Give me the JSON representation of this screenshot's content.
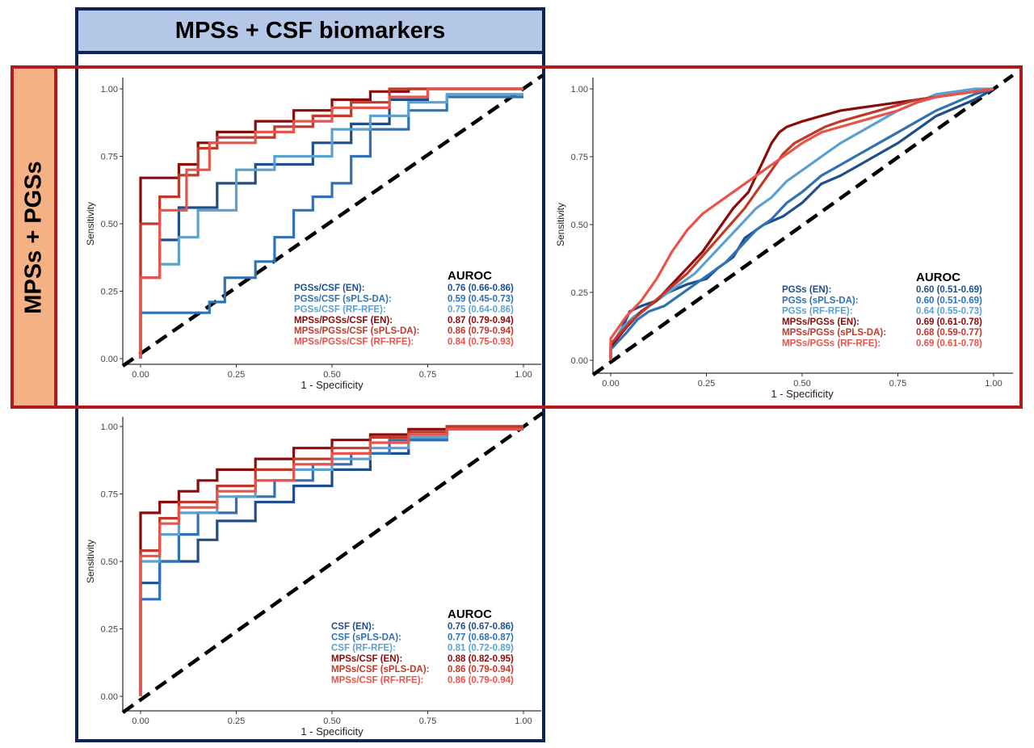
{
  "panels": {
    "column_header": "MPSs + CSF biomarkers",
    "row_header": "MPSs + PGSs"
  },
  "colors": {
    "frame_blue": "#0f2256",
    "frame_red": "#b01a1a",
    "header_blue_fill": "#b4c7e7",
    "header_orange_fill": "#f4b183"
  },
  "chart_data": [
    {
      "type": "line",
      "xlabel": "1 - Specificity",
      "ylabel": "Sensitivity",
      "xlim": [
        0,
        1
      ],
      "ylim": [
        0,
        1
      ],
      "ticks": [
        "0.00",
        "0.25",
        "0.50",
        "0.75",
        "1.00"
      ],
      "legend_title": "AUROC",
      "series": [
        {
          "name": "PGSs/CSF (EN):",
          "auroc": "0.76 (0.66-0.86)",
          "color": "#1f4e8c",
          "x": [
            0,
            0,
            0.05,
            0.05,
            0.1,
            0.1,
            0.2,
            0.2,
            0.3,
            0.3,
            0.45,
            0.45,
            0.55,
            0.55,
            0.65,
            0.65,
            0.75,
            0.75,
            1
          ],
          "y": [
            0,
            0.3,
            0.3,
            0.44,
            0.44,
            0.56,
            0.56,
            0.65,
            0.65,
            0.72,
            0.72,
            0.8,
            0.8,
            0.87,
            0.87,
            0.96,
            0.96,
            1,
            1
          ]
        },
        {
          "name": "PGSs/CSF (sPLS-DA):",
          "auroc": "0.59 (0.45-0.73)",
          "color": "#2f72b4",
          "x": [
            0,
            0,
            0.05,
            0.05,
            0.18,
            0.18,
            0.22,
            0.22,
            0.3,
            0.3,
            0.35,
            0.35,
            0.4,
            0.4,
            0.45,
            0.45,
            0.5,
            0.5,
            0.55,
            0.55,
            0.6,
            0.6,
            0.7,
            0.7,
            0.8,
            0.8,
            1
          ],
          "y": [
            0,
            0.17,
            0.17,
            0.17,
            0.17,
            0.21,
            0.21,
            0.3,
            0.3,
            0.36,
            0.36,
            0.45,
            0.45,
            0.55,
            0.55,
            0.6,
            0.6,
            0.65,
            0.65,
            0.75,
            0.75,
            0.85,
            0.85,
            0.92,
            0.92,
            0.97,
            0.97
          ]
        },
        {
          "name": "PGSs/CSF (RF-RFE):",
          "auroc": "0.75 (0.64-0.86)",
          "color": "#5ba0d0",
          "x": [
            0,
            0,
            0.05,
            0.05,
            0.1,
            0.1,
            0.15,
            0.15,
            0.25,
            0.25,
            0.35,
            0.35,
            0.5,
            0.5,
            0.6,
            0.6,
            0.7,
            0.7,
            0.8,
            0.8,
            1
          ],
          "y": [
            0,
            0.3,
            0.3,
            0.35,
            0.35,
            0.45,
            0.45,
            0.55,
            0.55,
            0.7,
            0.7,
            0.75,
            0.75,
            0.85,
            0.85,
            0.9,
            0.9,
            0.95,
            0.95,
            0.98,
            0.98
          ]
        },
        {
          "name": "MPSs/PGSs/CSF (EN):",
          "auroc": "0.87 (0.79-0.94)",
          "color": "#8b0a0a",
          "x": [
            0,
            0,
            0.1,
            0.1,
            0.15,
            0.15,
            0.2,
            0.2,
            0.3,
            0.3,
            0.4,
            0.4,
            0.5,
            0.5,
            0.6,
            0.6,
            0.7,
            0.7,
            1
          ],
          "y": [
            0,
            0.67,
            0.67,
            0.72,
            0.72,
            0.8,
            0.8,
            0.84,
            0.84,
            0.88,
            0.88,
            0.92,
            0.92,
            0.96,
            0.96,
            0.99,
            0.99,
            1,
            1
          ]
        },
        {
          "name": "MPSs/PGSs/CSF (sPLS-DA):",
          "auroc": "0.86 (0.79-0.94)",
          "color": "#c0392b",
          "x": [
            0,
            0,
            0.05,
            0.05,
            0.1,
            0.1,
            0.15,
            0.15,
            0.2,
            0.2,
            0.35,
            0.35,
            0.45,
            0.45,
            0.55,
            0.55,
            0.65,
            0.65,
            1
          ],
          "y": [
            0,
            0.5,
            0.5,
            0.6,
            0.6,
            0.68,
            0.68,
            0.78,
            0.78,
            0.82,
            0.82,
            0.86,
            0.86,
            0.9,
            0.9,
            0.95,
            0.95,
            1,
            1
          ]
        },
        {
          "name": "MPSs/PGSs/CSF (RF-RFE):",
          "auroc": "0.84 (0.75-0.93)",
          "color": "#e8534a",
          "x": [
            0,
            0,
            0.05,
            0.05,
            0.12,
            0.12,
            0.18,
            0.18,
            0.3,
            0.3,
            0.4,
            0.4,
            0.5,
            0.5,
            0.65,
            0.65,
            0.75,
            0.75,
            1
          ],
          "y": [
            0,
            0.3,
            0.3,
            0.55,
            0.55,
            0.7,
            0.7,
            0.8,
            0.8,
            0.84,
            0.84,
            0.88,
            0.88,
            0.93,
            0.93,
            0.97,
            0.97,
            1,
            1
          ]
        }
      ]
    },
    {
      "type": "line",
      "xlabel": "1 - Specificity",
      "ylabel": "Sensitivity",
      "xlim": [
        0,
        1
      ],
      "ylim": [
        0,
        1
      ],
      "ticks": [
        "0.00",
        "0.25",
        "0.50",
        "0.75",
        "1.00"
      ],
      "legend_title": "AUROC",
      "series": [
        {
          "name": "PGSs (EN):",
          "auroc": "0.60 (0.51-0.69)",
          "color": "#1f4e8c",
          "x": [
            0,
            0,
            0.03,
            0.05,
            0.08,
            0.12,
            0.15,
            0.2,
            0.25,
            0.28,
            0.32,
            0.35,
            0.4,
            0.45,
            0.5,
            0.55,
            0.6,
            0.65,
            0.7,
            0.75,
            0.8,
            0.85,
            0.9,
            0.95,
            1
          ],
          "y": [
            0,
            0.05,
            0.12,
            0.18,
            0.2,
            0.22,
            0.25,
            0.28,
            0.3,
            0.34,
            0.38,
            0.45,
            0.5,
            0.53,
            0.58,
            0.65,
            0.68,
            0.72,
            0.76,
            0.8,
            0.85,
            0.9,
            0.93,
            0.96,
            1
          ]
        },
        {
          "name": "PGSs (sPLS-DA):",
          "auroc": "0.60 (0.51-0.69)",
          "color": "#2f72b4",
          "x": [
            0,
            0,
            0.04,
            0.07,
            0.1,
            0.14,
            0.18,
            0.22,
            0.26,
            0.3,
            0.34,
            0.38,
            0.42,
            0.46,
            0.5,
            0.55,
            0.6,
            0.65,
            0.7,
            0.75,
            0.8,
            0.85,
            0.9,
            0.95,
            1
          ],
          "y": [
            0,
            0.04,
            0.1,
            0.15,
            0.18,
            0.2,
            0.24,
            0.28,
            0.32,
            0.36,
            0.42,
            0.48,
            0.52,
            0.58,
            0.62,
            0.68,
            0.72,
            0.76,
            0.8,
            0.84,
            0.88,
            0.92,
            0.95,
            0.98,
            1
          ]
        },
        {
          "name": "PGSs (RF-RFE):",
          "auroc": "0.64 (0.55-0.73)",
          "color": "#5ba0d0",
          "x": [
            0,
            0,
            0.03,
            0.06,
            0.1,
            0.14,
            0.18,
            0.22,
            0.26,
            0.3,
            0.34,
            0.38,
            0.42,
            0.46,
            0.5,
            0.55,
            0.6,
            0.65,
            0.7,
            0.75,
            0.8,
            0.85,
            0.9,
            0.95,
            1
          ],
          "y": [
            0,
            0.05,
            0.12,
            0.16,
            0.2,
            0.24,
            0.28,
            0.32,
            0.38,
            0.44,
            0.5,
            0.56,
            0.6,
            0.66,
            0.7,
            0.75,
            0.8,
            0.84,
            0.88,
            0.92,
            0.95,
            0.98,
            0.99,
            1,
            1
          ]
        },
        {
          "name": "MPSs/PGSs (EN):",
          "auroc": "0.69 (0.61-0.78)",
          "color": "#8b0a0a",
          "x": [
            0,
            0,
            0.04,
            0.08,
            0.12,
            0.16,
            0.2,
            0.24,
            0.28,
            0.32,
            0.36,
            0.38,
            0.4,
            0.42,
            0.44,
            0.46,
            0.5,
            0.55,
            0.6,
            0.65,
            0.7,
            0.75,
            0.8,
            0.85,
            0.9,
            0.95,
            1
          ],
          "y": [
            0,
            0.05,
            0.12,
            0.18,
            0.22,
            0.28,
            0.34,
            0.4,
            0.48,
            0.56,
            0.62,
            0.68,
            0.74,
            0.8,
            0.84,
            0.86,
            0.88,
            0.9,
            0.92,
            0.93,
            0.94,
            0.95,
            0.96,
            0.97,
            0.98,
            0.99,
            1
          ]
        },
        {
          "name": "MPSs/PGSs (sPLS-DA):",
          "auroc": "0.68 (0.59-0.77)",
          "color": "#c0392b",
          "x": [
            0,
            0,
            0.05,
            0.1,
            0.15,
            0.2,
            0.25,
            0.3,
            0.35,
            0.38,
            0.42,
            0.45,
            0.48,
            0.52,
            0.56,
            0.6,
            0.65,
            0.7,
            0.75,
            0.8,
            0.85,
            0.9,
            0.95,
            1
          ],
          "y": [
            0,
            0.06,
            0.14,
            0.2,
            0.26,
            0.32,
            0.4,
            0.48,
            0.56,
            0.62,
            0.7,
            0.76,
            0.8,
            0.83,
            0.86,
            0.88,
            0.9,
            0.92,
            0.94,
            0.96,
            0.97,
            0.98,
            0.99,
            1
          ]
        },
        {
          "name": "MPSs/PGSs (RF-RFE):",
          "auroc": "0.69 (0.61-0.78)",
          "color": "#e8534a",
          "x": [
            0,
            0,
            0.04,
            0.08,
            0.12,
            0.16,
            0.2,
            0.24,
            0.28,
            0.32,
            0.36,
            0.4,
            0.45,
            0.5,
            0.55,
            0.6,
            0.65,
            0.7,
            0.75,
            0.8,
            0.85,
            0.9,
            0.95,
            1
          ],
          "y": [
            0,
            0.08,
            0.16,
            0.22,
            0.3,
            0.4,
            0.48,
            0.54,
            0.58,
            0.62,
            0.66,
            0.7,
            0.75,
            0.8,
            0.84,
            0.86,
            0.88,
            0.9,
            0.92,
            0.95,
            0.97,
            0.98,
            0.99,
            1
          ]
        }
      ]
    },
    {
      "type": "line",
      "xlabel": "1 - Specificity",
      "ylabel": "Sensitivity",
      "xlim": [
        0,
        1
      ],
      "ylim": [
        0,
        1
      ],
      "ticks": [
        "0.00",
        "0.25",
        "0.50",
        "0.75",
        "1.00"
      ],
      "legend_title": "AUROC",
      "series": [
        {
          "name": "CSF (EN):",
          "auroc": "0.76 (0.67-0.86)",
          "color": "#1f4e8c",
          "x": [
            0,
            0,
            0.05,
            0.05,
            0.15,
            0.15,
            0.2,
            0.2,
            0.3,
            0.3,
            0.4,
            0.4,
            0.5,
            0.5,
            0.6,
            0.6,
            0.7,
            0.7,
            0.8,
            0.8,
            1
          ],
          "y": [
            0,
            0.42,
            0.42,
            0.5,
            0.5,
            0.58,
            0.58,
            0.65,
            0.65,
            0.72,
            0.72,
            0.78,
            0.78,
            0.84,
            0.84,
            0.9,
            0.9,
            0.95,
            0.95,
            1,
            1
          ]
        },
        {
          "name": "CSF (sPLS-DA):",
          "auroc": "0.77 (0.68-0.87)",
          "color": "#2f72b4",
          "x": [
            0,
            0,
            0.05,
            0.05,
            0.1,
            0.1,
            0.15,
            0.15,
            0.25,
            0.25,
            0.35,
            0.35,
            0.45,
            0.45,
            0.55,
            0.55,
            0.65,
            0.65,
            0.8,
            0.8,
            1
          ],
          "y": [
            0,
            0.36,
            0.36,
            0.5,
            0.5,
            0.6,
            0.6,
            0.68,
            0.68,
            0.74,
            0.74,
            0.8,
            0.8,
            0.86,
            0.86,
            0.9,
            0.9,
            0.95,
            0.95,
            0.99,
            0.99
          ]
        },
        {
          "name": "CSF (RF-RFE):",
          "auroc": "0.81 (0.72-0.89)",
          "color": "#5ba0d0",
          "x": [
            0,
            0,
            0.05,
            0.05,
            0.1,
            0.1,
            0.2,
            0.2,
            0.3,
            0.3,
            0.4,
            0.4,
            0.5,
            0.5,
            0.6,
            0.6,
            0.7,
            0.7,
            0.8,
            0.8,
            1
          ],
          "y": [
            0,
            0.5,
            0.5,
            0.6,
            0.6,
            0.68,
            0.68,
            0.74,
            0.74,
            0.8,
            0.8,
            0.84,
            0.84,
            0.88,
            0.88,
            0.92,
            0.92,
            0.96,
            0.96,
            0.99,
            0.99
          ]
        },
        {
          "name": "MPSs/CSF (EN):",
          "auroc": "0.88 (0.82-0.95)",
          "color": "#8b0a0a",
          "x": [
            0,
            0,
            0.05,
            0.05,
            0.1,
            0.1,
            0.15,
            0.15,
            0.2,
            0.2,
            0.3,
            0.3,
            0.4,
            0.4,
            0.5,
            0.5,
            0.6,
            0.6,
            0.7,
            0.7,
            0.8,
            0.8,
            1
          ],
          "y": [
            0,
            0.68,
            0.68,
            0.72,
            0.72,
            0.76,
            0.76,
            0.8,
            0.8,
            0.84,
            0.84,
            0.88,
            0.88,
            0.92,
            0.92,
            0.95,
            0.95,
            0.97,
            0.97,
            0.99,
            0.99,
            1,
            1
          ]
        },
        {
          "name": "MPSs/CSF (sPLS-DA):",
          "auroc": "0.86 (0.79-0.94)",
          "color": "#c0392b",
          "x": [
            0,
            0,
            0.05,
            0.05,
            0.1,
            0.1,
            0.2,
            0.2,
            0.3,
            0.3,
            0.4,
            0.4,
            0.5,
            0.5,
            0.6,
            0.6,
            0.7,
            0.7,
            0.8,
            0.8,
            1
          ],
          "y": [
            0,
            0.54,
            0.54,
            0.66,
            0.66,
            0.72,
            0.72,
            0.78,
            0.78,
            0.84,
            0.84,
            0.88,
            0.88,
            0.92,
            0.92,
            0.96,
            0.96,
            0.98,
            0.98,
            1,
            1
          ]
        },
        {
          "name": "MPSs/CSF (RF-RFE):",
          "auroc": "0.86 (0.79-0.94)",
          "color": "#e8534a",
          "x": [
            0,
            0,
            0.05,
            0.05,
            0.1,
            0.1,
            0.2,
            0.2,
            0.3,
            0.3,
            0.4,
            0.4,
            0.5,
            0.5,
            0.6,
            0.6,
            0.7,
            0.7,
            0.8,
            0.8,
            1
          ],
          "y": [
            0,
            0.52,
            0.52,
            0.64,
            0.64,
            0.7,
            0.7,
            0.76,
            0.76,
            0.8,
            0.8,
            0.86,
            0.86,
            0.9,
            0.9,
            0.94,
            0.94,
            0.97,
            0.97,
            0.99,
            0.99
          ]
        }
      ]
    }
  ]
}
